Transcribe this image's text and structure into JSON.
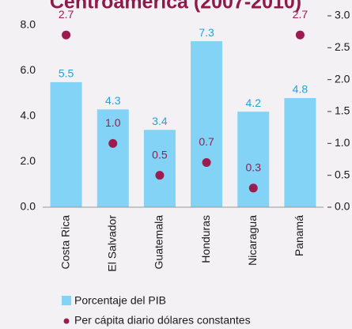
{
  "chart_data": {
    "type": "bar",
    "title": "Centroamérica (2007-2010)",
    "categories": [
      "Costa Rica",
      "El Salvador",
      "Guatemala",
      "Honduras",
      "Nicaragua",
      "Panamá"
    ],
    "series": [
      {
        "name": "Porcentaje del PIB",
        "color": "#82d3f5",
        "label_color": "#1ea3df",
        "values": [
          5.5,
          4.3,
          3.4,
          7.3,
          4.2,
          4.8
        ]
      },
      {
        "name": "Per cápita diario dólares constantes",
        "color": "#9b1d4f",
        "axis": "y2",
        "type": "scatter",
        "values": [
          2.7,
          1.0,
          0.5,
          0.7,
          0.3,
          2.7
        ],
        "value_labels": [
          "2.7",
          "1.0",
          "0.5",
          "0.7",
          "0.3",
          "2.7"
        ]
      }
    ],
    "ylim": [
      0,
      8
    ],
    "yticks": [
      {
        "value": 0,
        "label": "0.0"
      },
      {
        "value": 2,
        "label": "2.0"
      },
      {
        "value": 4,
        "label": "4.0"
      },
      {
        "value": 6,
        "label": "6.0"
      },
      {
        "value": 8,
        "label": "8.0"
      }
    ],
    "y2lim": [
      0,
      3
    ],
    "y2ticks": [
      {
        "value": 0,
        "label": "0.0"
      },
      {
        "value": 0.5,
        "label": "0.5"
      },
      {
        "value": 1,
        "label": "1.0"
      },
      {
        "value": 1.5,
        "label": "1.5"
      },
      {
        "value": 2,
        "label": "2.0"
      },
      {
        "value": 2.5,
        "label": "2.5"
      },
      {
        "value": 3,
        "label": "3.0"
      }
    ]
  }
}
